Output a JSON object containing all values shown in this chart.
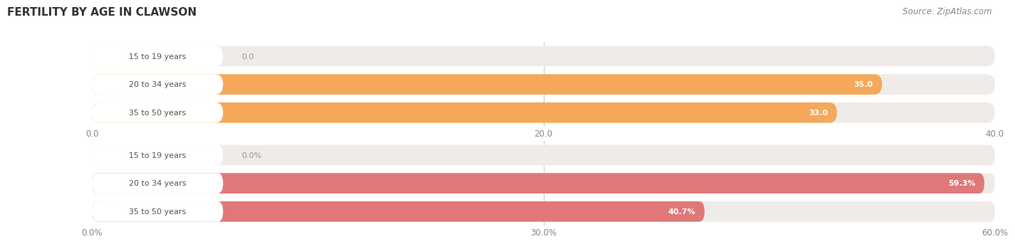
{
  "title": "FERTILITY BY AGE IN CLAWSON",
  "source": "Source: ZipAtlas.com",
  "chart1": {
    "categories": [
      "15 to 19 years",
      "20 to 34 years",
      "35 to 50 years"
    ],
    "values": [
      0.0,
      35.0,
      33.0
    ],
    "xlim": [
      0,
      40.0
    ],
    "xticks": [
      0.0,
      20.0,
      40.0
    ],
    "xtick_labels": [
      "0.0",
      "20.0",
      "40.0"
    ],
    "bar_color": "#F5A85A",
    "bar_label_bg": "#F0C090",
    "bar_bg_color": "#EEEBE8",
    "value_color_inside": "#FFFFFF",
    "value_color_outside": "#999999"
  },
  "chart2": {
    "categories": [
      "15 to 19 years",
      "20 to 34 years",
      "35 to 50 years"
    ],
    "values": [
      0.0,
      59.3,
      40.7
    ],
    "xlim": [
      0,
      60.0
    ],
    "xticks": [
      0.0,
      30.0,
      60.0
    ],
    "xtick_labels": [
      "0.0%",
      "30.0%",
      "60.0%"
    ],
    "bar_color": "#E07878",
    "bar_label_bg": "#E8A0A0",
    "bar_bg_color": "#EEEBE8",
    "value_color_inside": "#FFFFFF",
    "value_color_outside": "#999999"
  },
  "label_fontsize": 8.0,
  "value_fontsize": 8.0,
  "tick_fontsize": 8.5,
  "title_fontsize": 11,
  "source_fontsize": 8.5,
  "fig_bg": "#FFFFFF",
  "grid_color": "#CCCCCC"
}
